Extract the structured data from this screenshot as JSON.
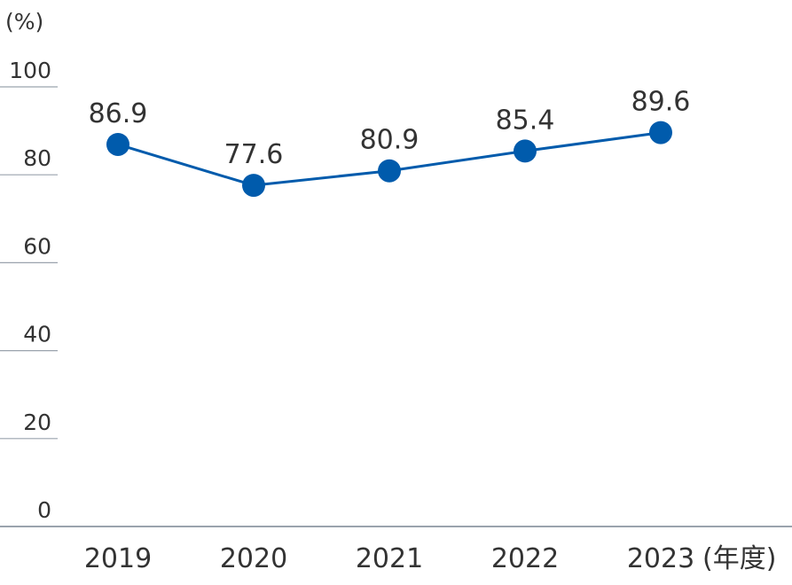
{
  "chart_data": {
    "type": "line",
    "title": "",
    "y_unit": "(%)",
    "x_unit": "(年度)",
    "categories": [
      "2019",
      "2020",
      "2021",
      "2022",
      "2023"
    ],
    "series": [
      {
        "values": [
          86.9,
          77.6,
          80.9,
          85.4,
          89.6
        ],
        "labels": [
          "86.9",
          "77.6",
          "80.9",
          "85.4",
          "89.6"
        ],
        "color": "#005bac"
      }
    ],
    "ylim": [
      0,
      100
    ],
    "yticks": [
      0,
      20,
      40,
      60,
      80,
      100
    ],
    "ytick_labels": [
      "0",
      "20",
      "40",
      "60",
      "80",
      "100"
    ],
    "grid": false
  }
}
